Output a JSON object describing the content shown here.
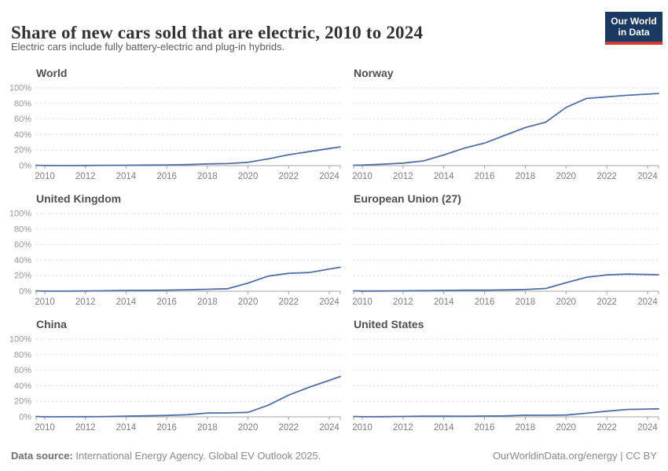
{
  "header": {
    "title": "Share of new cars sold that are electric, 2010 to 2024",
    "subtitle": "Electric cars include fully battery-electric and plug-in hybrids.",
    "logo": {
      "line1": "Our World",
      "line2": "in Data"
    }
  },
  "footer": {
    "source_label": "Data source:",
    "source_text": " International Energy Agency. Global EV Outlook 2025.",
    "right_text": "OurWorldinData.org/energy | CC BY"
  },
  "colors": {
    "background": "#ffffff",
    "line": "#4f6fa5",
    "grid": "#d9d9d9",
    "axis": "#a3a3a3",
    "y_tick_text": "#979797",
    "x_tick_text": "#7e7e7e",
    "panel_title": "#4f4f4f",
    "logo_bg": "#1a3a63",
    "logo_accent": "#cf3a31"
  },
  "chart_config": {
    "ylim": [
      0,
      100
    ],
    "yticks": [
      0,
      20,
      40,
      60,
      80,
      100
    ],
    "xticks": [
      2010,
      2012,
      2014,
      2016,
      2018,
      2020,
      2022,
      2024
    ],
    "unit": "%",
    "grid": true,
    "legend": "none"
  },
  "chart_data": [
    {
      "type": "line",
      "title": "World",
      "ylim": [
        0,
        100
      ],
      "x": [
        2010,
        2011,
        2012,
        2013,
        2014,
        2015,
        2016,
        2017,
        2018,
        2019,
        2020,
        2021,
        2022,
        2023,
        2024
      ],
      "values": [
        0.1,
        0.1,
        0.2,
        0.4,
        0.5,
        0.7,
        0.9,
        1.3,
        2.2,
        2.6,
        4.2,
        8.7,
        14,
        18,
        22
      ]
    },
    {
      "type": "line",
      "title": "Norway",
      "ylim": [
        0,
        100
      ],
      "x": [
        2010,
        2011,
        2012,
        2013,
        2014,
        2015,
        2016,
        2017,
        2018,
        2019,
        2020,
        2021,
        2022,
        2023,
        2024
      ],
      "values": [
        0.7,
        1.8,
        3.2,
        6.1,
        13.7,
        22.4,
        29,
        39,
        49,
        56,
        75,
        86.5,
        88.5,
        90.5,
        92
      ]
    },
    {
      "type": "line",
      "title": "United Kingdom",
      "ylim": [
        0,
        100
      ],
      "x": [
        2010,
        2011,
        2012,
        2013,
        2014,
        2015,
        2016,
        2017,
        2018,
        2019,
        2020,
        2021,
        2022,
        2023,
        2024
      ],
      "values": [
        0.1,
        0.1,
        0.3,
        0.6,
        1,
        1.1,
        1.4,
        1.9,
        2.5,
        3.2,
        10.5,
        19.5,
        23,
        24,
        28.5
      ]
    },
    {
      "type": "line",
      "title": "European Union (27)",
      "ylim": [
        0,
        100
      ],
      "x": [
        2010,
        2011,
        2012,
        2013,
        2014,
        2015,
        2016,
        2017,
        2018,
        2019,
        2020,
        2021,
        2022,
        2023,
        2024
      ],
      "values": [
        0.2,
        0.3,
        0.5,
        0.7,
        1,
        1.3,
        1.3,
        1.7,
        2.2,
        3.5,
        11,
        18,
        21,
        22,
        21.5
      ]
    },
    {
      "type": "line",
      "title": "China",
      "ylim": [
        0,
        100
      ],
      "x": [
        2010,
        2011,
        2012,
        2013,
        2014,
        2015,
        2016,
        2017,
        2018,
        2019,
        2020,
        2021,
        2022,
        2023,
        2024
      ],
      "values": [
        0,
        0.1,
        0.2,
        0.3,
        0.8,
        1.3,
        1.8,
        2.7,
        4.8,
        5.1,
        5.8,
        15,
        28,
        38,
        47
      ]
    },
    {
      "type": "line",
      "title": "United States",
      "ylim": [
        0,
        100
      ],
      "x": [
        2010,
        2011,
        2012,
        2013,
        2014,
        2015,
        2016,
        2017,
        2018,
        2019,
        2020,
        2021,
        2022,
        2023,
        2024
      ],
      "values": [
        0.1,
        0.2,
        0.5,
        0.8,
        0.8,
        0.7,
        1,
        1.2,
        2.1,
        2,
        2.3,
        4.6,
        7.3,
        9.5,
        10
      ]
    }
  ]
}
